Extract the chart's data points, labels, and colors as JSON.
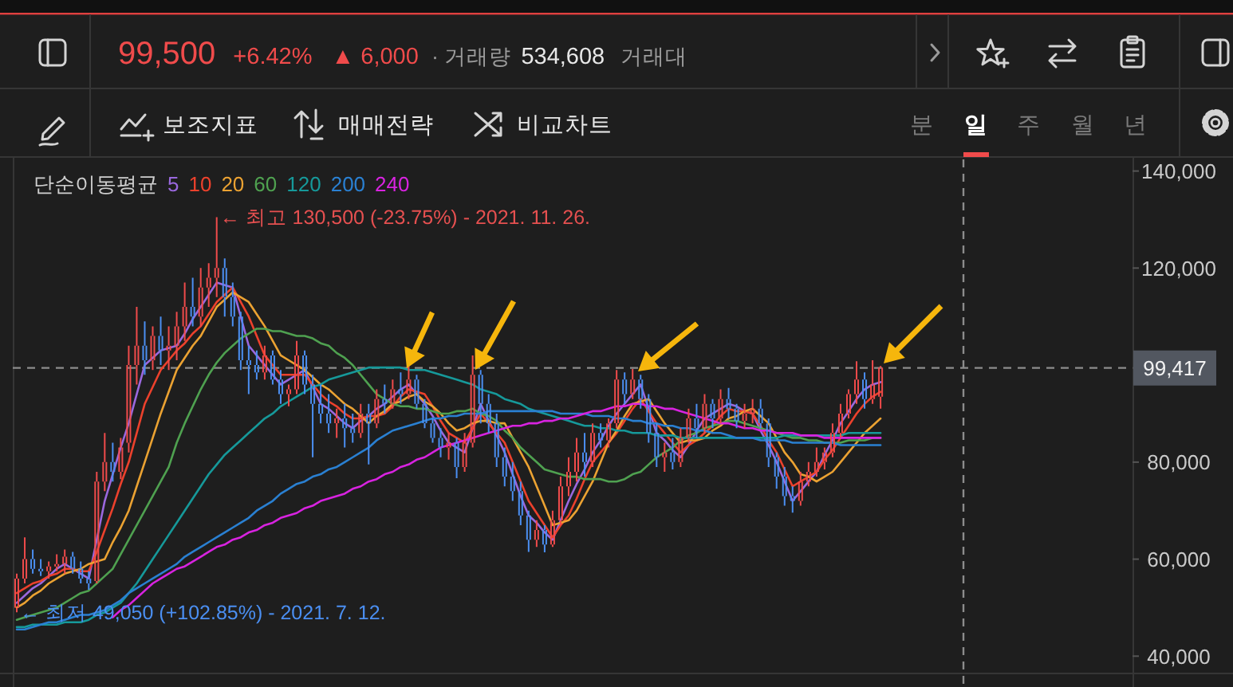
{
  "chart_data": [
    {
      "type": "other",
      "annotations": [
        "99,500",
        "+6.42%",
        "▲ 6,000",
        "· 거래량",
        "534,608",
        "거래대",
        "보조지표",
        "매매전략",
        "비교차트",
        "분",
        "일",
        "주",
        "월",
        "년"
      ]
    },
    {
      "type": "candlestick",
      "categories": [
        null,
        null,
        null,
        null,
        null,
        null,
        null,
        null,
        null,
        null,
        null,
        null,
        null,
        null,
        null,
        null,
        null,
        null,
        null,
        null,
        null,
        null,
        null,
        null,
        null,
        null,
        null,
        null,
        null,
        null,
        null,
        null,
        null,
        null,
        null,
        null,
        null,
        null,
        null,
        null,
        null,
        null,
        null,
        null,
        null,
        null,
        null,
        null,
        null,
        null,
        null,
        null,
        null,
        null,
        null,
        null,
        null,
        null,
        null,
        null,
        null,
        null,
        null,
        null,
        null,
        null,
        null,
        null,
        null,
        null,
        null,
        null,
        null,
        null,
        null,
        null,
        null,
        null,
        null,
        null,
        null,
        null,
        null,
        null,
        null,
        null,
        null,
        null,
        null,
        null,
        null,
        null,
        null,
        null,
        null,
        null,
        null,
        null,
        null,
        null,
        null,
        null,
        null,
        null,
        null,
        null,
        null,
        null,
        null,
        null,
        null,
        null,
        null,
        null,
        null,
        null,
        null,
        null,
        null,
        null,
        null,
        null,
        null,
        null,
        null,
        null,
        null,
        null,
        null,
        null,
        null,
        null,
        null,
        null,
        null,
        null,
        null,
        null,
        null,
        null
      ],
      "ohlc": [
        [
          50000,
          57000,
          49050,
          56000
        ],
        [
          56000,
          64500,
          55000,
          60000
        ],
        [
          60000,
          62000,
          57000,
          58000
        ],
        [
          58000,
          60000,
          56500,
          57500
        ],
        [
          57500,
          59500,
          56000,
          58500
        ],
        [
          58500,
          61000,
          57500,
          59000
        ],
        [
          59000,
          62000,
          57000,
          60500
        ],
        [
          60500,
          61500,
          57000,
          58000
        ],
        [
          58000,
          59500,
          55000,
          56000
        ],
        [
          56000,
          57500,
          53700,
          55000
        ],
        [
          55500,
          78000,
          55000,
          76000
        ],
        [
          76000,
          86000,
          74000,
          80000
        ],
        [
          80000,
          84000,
          76000,
          78000
        ],
        [
          78000,
          85000,
          76500,
          83000
        ],
        [
          84000,
          104000,
          82000,
          100000
        ],
        [
          100000,
          112000,
          96000,
          104000
        ],
        [
          104000,
          109000,
          98000,
          101000
        ],
        [
          101000,
          108000,
          99000,
          106000
        ],
        [
          106000,
          110000,
          100000,
          103000
        ],
        [
          103000,
          108000,
          99000,
          104000
        ],
        [
          104000,
          111000,
          101000,
          108000
        ],
        [
          108000,
          117000,
          105000,
          112000
        ],
        [
          112000,
          118000,
          108000,
          110000
        ],
        [
          110000,
          120000,
          108000,
          116000
        ],
        [
          116000,
          121000,
          112000,
          118000
        ],
        [
          118000,
          130500,
          114000,
          120000
        ],
        [
          120000,
          122000,
          110000,
          114000
        ],
        [
          114000,
          117000,
          108000,
          110000
        ],
        [
          110000,
          111000,
          99000,
          101000
        ],
        [
          101000,
          104000,
          94000,
          100000
        ],
        [
          100000,
          103000,
          97000,
          98500
        ],
        [
          98500,
          104000,
          97000,
          102000
        ],
        [
          102000,
          103000,
          96000,
          97000
        ],
        [
          97000,
          99000,
          92000,
          94000
        ],
        [
          94000,
          96000,
          91500,
          95000
        ],
        [
          95000,
          105000,
          94000,
          102000
        ],
        [
          102000,
          103000,
          94000,
          96000
        ],
        [
          96000,
          98000,
          81000,
          92000
        ],
        [
          92000,
          96000,
          88000,
          90000
        ],
        [
          90000,
          94000,
          86000,
          88000
        ],
        [
          88000,
          91000,
          85000,
          89000
        ],
        [
          89000,
          92000,
          83000,
          87000
        ],
        [
          87000,
          90000,
          84000,
          86000
        ],
        [
          86000,
          92000,
          85000,
          90000
        ],
        [
          90000,
          92000,
          79500,
          88000
        ],
        [
          88000,
          95000,
          87000,
          93000
        ],
        [
          93000,
          96000,
          90000,
          92000
        ],
        [
          92000,
          97000,
          91000,
          95000
        ],
        [
          95000,
          98500,
          92000,
          94000
        ],
        [
          94000,
          99800,
          93000,
          97000
        ],
        [
          97000,
          98000,
          91000,
          92000
        ],
        [
          92000,
          93000,
          87000,
          88000
        ],
        [
          88000,
          89000,
          84000,
          85000
        ],
        [
          85000,
          87000,
          81000,
          83000
        ],
        [
          83000,
          86000,
          80500,
          84000
        ],
        [
          84000,
          85000,
          76700,
          79000
        ],
        [
          79000,
          86000,
          78000,
          84000
        ],
        [
          84000,
          102000,
          83000,
          98000
        ],
        [
          98000,
          99000,
          88000,
          92000
        ],
        [
          92000,
          94000,
          86000,
          88000
        ],
        [
          88000,
          90000,
          79000,
          81000
        ],
        [
          81000,
          83000,
          75000,
          77000
        ],
        [
          77000,
          80000,
          72000,
          74000
        ],
        [
          74000,
          76000,
          67000,
          69000
        ],
        [
          69000,
          70000,
          61500,
          64000
        ],
        [
          64000,
          68000,
          62500,
          66000
        ],
        [
          66000,
          67000,
          61400,
          63000
        ],
        [
          63000,
          70000,
          62500,
          68000
        ],
        [
          68000,
          77000,
          67000,
          75000
        ],
        [
          75000,
          81000,
          73000,
          78000
        ],
        [
          78000,
          85000,
          76000,
          82000
        ],
        [
          82000,
          86000,
          77000,
          80000
        ],
        [
          80000,
          88000,
          79000,
          86000
        ],
        [
          86000,
          88000,
          83000,
          84500
        ],
        [
          84500,
          89000,
          83000,
          88000
        ],
        [
          88000,
          99000,
          87000,
          97000
        ],
        [
          97000,
          98500,
          92000,
          94000
        ],
        [
          94000,
          99200,
          93000,
          97000
        ],
        [
          97000,
          98000,
          91000,
          93000
        ],
        [
          93000,
          94000,
          84000,
          86000
        ],
        [
          86000,
          88000,
          79000,
          81000
        ],
        [
          81000,
          84000,
          78000,
          82000
        ],
        [
          82000,
          85000,
          78500,
          80000
        ],
        [
          80000,
          87000,
          79000,
          85000
        ],
        [
          85000,
          91000,
          84000,
          89000
        ],
        [
          89000,
          92000,
          85000,
          87000
        ],
        [
          87000,
          94000,
          86000,
          92000
        ],
        [
          92000,
          93000,
          87000,
          89000
        ],
        [
          89000,
          95000,
          88000,
          93000
        ],
        [
          93000,
          95300,
          89000,
          91000
        ],
        [
          91000,
          92000,
          87000,
          88500
        ],
        [
          88500,
          92000,
          87000,
          90000
        ],
        [
          90000,
          93000,
          88000,
          91000
        ],
        [
          91000,
          93000,
          87000,
          88000
        ],
        [
          88000,
          89000,
          79000,
          81000
        ],
        [
          81000,
          82000,
          74500,
          77000
        ],
        [
          77000,
          79000,
          71000,
          73000
        ],
        [
          73000,
          75000,
          69600,
          72000
        ],
        [
          72000,
          78000,
          71000,
          76000
        ],
        [
          76000,
          80000,
          75000,
          78000
        ],
        [
          78000,
          83000,
          77000,
          80000
        ],
        [
          80000,
          83000,
          78500,
          82000
        ],
        [
          82000,
          88000,
          81000,
          86000
        ],
        [
          86000,
          92000,
          85000,
          90000
        ],
        [
          90000,
          95000,
          89000,
          94000
        ],
        [
          94000,
          100800,
          92000,
          97000
        ],
        [
          97000,
          98500,
          91000,
          93000
        ],
        [
          93000,
          101000,
          92000,
          96000
        ],
        [
          93500,
          99800,
          91000,
          99500
        ],
        null,
        null,
        null,
        null,
        null,
        null,
        null,
        null,
        null,
        null,
        null,
        null,
        null,
        null,
        null,
        null,
        null,
        null,
        null,
        null,
        null,
        null,
        null,
        null,
        null,
        null,
        null,
        null,
        null,
        null,
        null
      ],
      "series": [
        {
          "type": "line",
          "name": "5",
          "color": "#9a68de",
          "values": [
            51000,
            52500,
            54000,
            55000,
            56500,
            58000,
            59000,
            58000,
            57000,
            56000,
            64000,
            72000,
            77500,
            83000,
            88000,
            94000,
            100000,
            101500,
            103000,
            103500,
            104000,
            106500,
            109500,
            112000,
            114500,
            117000,
            116500,
            116000,
            110000,
            104000,
            102000,
            100000,
            98000,
            96000,
            97000,
            98000,
            99000,
            95500,
            92000,
            91000,
            89500,
            88000,
            87000,
            88500,
            89500,
            91000,
            92000,
            93500,
            95000,
            96000,
            94000,
            92000,
            89500,
            86500,
            84000,
            83000,
            82000,
            87000,
            92000,
            88500,
            85500,
            82000,
            77500,
            73000,
            69000,
            67500,
            65500,
            64000,
            68000,
            72000,
            75500,
            78500,
            82000,
            84500,
            87500,
            90000,
            92000,
            94000,
            96000,
            91000,
            86000,
            84500,
            82500,
            81000,
            83500,
            86500,
            89000,
            90000,
            91000,
            92000,
            91500,
            90500,
            90000,
            86500,
            83500,
            80000,
            76000,
            72000,
            74000,
            76000,
            78000,
            81500,
            84500,
            88000,
            90500,
            93000,
            95000,
            96000,
            96500,
            null,
            null,
            null,
            null,
            null,
            null,
            null,
            null,
            null,
            null,
            null,
            null,
            null,
            null,
            null,
            null,
            null,
            null,
            null,
            null,
            null,
            null,
            null,
            null,
            null,
            null,
            null,
            null,
            null,
            null,
            null
          ]
        },
        {
          "type": "line",
          "name": "10",
          "color": "#ec412c",
          "values": [
            53000,
            54000,
            55000,
            55500,
            56500,
            57000,
            58000,
            58000,
            57500,
            57500,
            61500,
            66000,
            70500,
            75500,
            80000,
            86000,
            92000,
            95500,
            99000,
            101000,
            103000,
            104500,
            106500,
            108000,
            110500,
            113000,
            114500,
            116000,
            113000,
            110000,
            106000,
            102000,
            100000,
            98000,
            98000,
            98000,
            98000,
            96000,
            94000,
            92500,
            91500,
            90000,
            89000,
            89000,
            89500,
            89500,
            90000,
            91500,
            93500,
            95000,
            94500,
            94000,
            91500,
            88500,
            86000,
            85000,
            84000,
            87000,
            90000,
            88000,
            86000,
            84000,
            80000,
            76000,
            72000,
            69500,
            67000,
            64500,
            67000,
            69000,
            72500,
            76500,
            80000,
            82000,
            84000,
            86000,
            88500,
            91000,
            93000,
            90500,
            88000,
            86000,
            84000,
            82000,
            83500,
            84500,
            86000,
            87500,
            89500,
            91000,
            90500,
            90500,
            90000,
            87500,
            84500,
            82000,
            78500,
            75000,
            76000,
            77000,
            78000,
            80500,
            82500,
            85000,
            87500,
            90000,
            92000,
            93500,
            94500,
            null,
            null,
            null,
            null,
            null,
            null,
            null,
            null,
            null,
            null,
            null,
            null,
            null,
            null,
            null,
            null,
            null,
            null,
            null,
            null,
            null,
            null,
            null,
            null,
            null,
            null,
            null,
            null,
            null,
            null,
            null
          ]
        },
        {
          "type": "line",
          "name": "20",
          "color": "#eba232",
          "values": [
            50000,
            51000,
            52500,
            53500,
            55000,
            56000,
            57000,
            57500,
            58000,
            59000,
            59500,
            60000,
            63500,
            66500,
            70000,
            75000,
            80000,
            85000,
            90000,
            94500,
            99000,
            101500,
            104000,
            106000,
            109000,
            112000,
            113500,
            115000,
            114000,
            113000,
            110500,
            108000,
            105000,
            102000,
            101000,
            100000,
            99000,
            97500,
            96000,
            95000,
            93500,
            92000,
            91000,
            89500,
            88000,
            89500,
            90500,
            92000,
            92500,
            93500,
            94000,
            92500,
            91500,
            90000,
            88000,
            86500,
            87000,
            88000,
            88500,
            88500,
            88000,
            88000,
            85000,
            82000,
            79000,
            75000,
            71000,
            67000,
            67500,
            68000,
            70000,
            73000,
            76000,
            80000,
            84000,
            86500,
            89500,
            92000,
            92500,
            93000,
            90500,
            88000,
            86000,
            84000,
            84500,
            84500,
            85000,
            86500,
            87500,
            89000,
            89500,
            90500,
            91000,
            89500,
            88000,
            85000,
            82000,
            80000,
            77500,
            77000,
            76000,
            77000,
            78000,
            80000,
            82000,
            84000,
            86000,
            87500,
            89000,
            null,
            null,
            null,
            null,
            null,
            null,
            null,
            null,
            null,
            null,
            null,
            null,
            null,
            null,
            null,
            null,
            null,
            null,
            null,
            null,
            null,
            null,
            null,
            null,
            null,
            null,
            null,
            null,
            null,
            null,
            null
          ]
        },
        {
          "type": "line",
          "name": "60",
          "color": "#4fa150",
          "values": [
            47500,
            48000,
            48500,
            49000,
            49500,
            50000,
            51000,
            52000,
            53000,
            53500,
            55000,
            56500,
            58000,
            61000,
            64000,
            67000,
            70000,
            73000,
            76000,
            79000,
            84000,
            88000,
            91500,
            95000,
            98000,
            100500,
            102500,
            104000,
            105500,
            106500,
            107500,
            107500,
            107000,
            107000,
            106500,
            106000,
            106000,
            105500,
            104500,
            104000,
            102500,
            101500,
            100000,
            98000,
            96000,
            94000,
            93000,
            92000,
            91500,
            91500,
            91000,
            91000,
            90500,
            90000,
            90000,
            90500,
            90500,
            91000,
            90000,
            89500,
            88500,
            86500,
            85000,
            83000,
            81500,
            80000,
            78500,
            78000,
            77500,
            77000,
            77000,
            76500,
            76500,
            76500,
            76000,
            76000,
            76500,
            77500,
            78000,
            79500,
            81000,
            82000,
            83000,
            84500,
            85500,
            86000,
            87000,
            87500,
            88000,
            88500,
            88500,
            88000,
            87500,
            87000,
            86500,
            86000,
            85500,
            85000,
            85000,
            84500,
            84500,
            84000,
            84000,
            84000,
            84500,
            84500,
            84500,
            85000,
            85000,
            null,
            null,
            null,
            null,
            null,
            null,
            null,
            null,
            null,
            null,
            null,
            null,
            null,
            null,
            null,
            null,
            null,
            null,
            null,
            null,
            null,
            null,
            null,
            null,
            null,
            null,
            null,
            null,
            null,
            null,
            null
          ]
        },
        {
          "type": "line",
          "name": "120",
          "color": "#16999a",
          "values": [
            46000,
            46000,
            46500,
            46500,
            46500,
            46500,
            47000,
            47000,
            47000,
            47500,
            48500,
            49000,
            50000,
            51000,
            53000,
            55000,
            57500,
            60000,
            62500,
            65000,
            67500,
            70000,
            72500,
            75000,
            77500,
            79500,
            81500,
            83000,
            84500,
            86000,
            87500,
            89000,
            90000,
            91500,
            92500,
            93500,
            94500,
            95500,
            96000,
            97000,
            97500,
            98000,
            98500,
            99000,
            99500,
            99500,
            99500,
            99500,
            99500,
            99000,
            99000,
            99000,
            98500,
            98000,
            97500,
            97000,
            96500,
            96000,
            95000,
            94500,
            94000,
            93000,
            92500,
            92000,
            91000,
            90500,
            90000,
            89500,
            89000,
            88500,
            88000,
            87500,
            87500,
            87000,
            87000,
            86500,
            86500,
            86000,
            86000,
            86000,
            85500,
            85500,
            85500,
            85000,
            85000,
            85000,
            85000,
            85000,
            85000,
            85000,
            85000,
            85000,
            85000,
            85000,
            85000,
            85000,
            85500,
            85500,
            85500,
            85500,
            85500,
            85500,
            85500,
            85500,
            86000,
            86000,
            86000,
            86000,
            86000,
            null,
            null,
            null,
            null,
            null,
            null,
            null,
            null,
            null,
            null,
            null,
            null,
            null,
            null,
            null,
            null,
            null,
            null,
            null,
            null,
            null,
            null,
            null,
            null,
            null,
            null,
            null,
            null,
            null,
            null,
            null
          ]
        },
        {
          "type": "line",
          "name": "200",
          "color": "#2a80d2",
          "values": [
            45500,
            45500,
            46000,
            46500,
            47000,
            47000,
            47500,
            48000,
            48500,
            48500,
            49000,
            49500,
            50500,
            51500,
            53000,
            54000,
            55000,
            56000,
            57000,
            58000,
            59000,
            60500,
            61500,
            62500,
            63500,
            64500,
            65500,
            66500,
            67500,
            68500,
            70000,
            71000,
            72000,
            73500,
            74500,
            75500,
            76000,
            77000,
            77500,
            78500,
            79000,
            80000,
            81000,
            82000,
            83000,
            84500,
            85500,
            86500,
            87000,
            87500,
            88000,
            88500,
            89000,
            89000,
            89500,
            89500,
            90000,
            90000,
            90000,
            90500,
            90500,
            90500,
            90500,
            90500,
            90500,
            90500,
            90500,
            90500,
            90000,
            90000,
            90000,
            90000,
            89500,
            89500,
            89500,
            89000,
            89000,
            88500,
            88500,
            88000,
            88000,
            87500,
            87500,
            87000,
            87000,
            86500,
            86500,
            86000,
            86000,
            85500,
            85000,
            85000,
            85000,
            84500,
            84500,
            84500,
            84500,
            84000,
            84000,
            84000,
            84000,
            84000,
            84000,
            83500,
            83500,
            83500,
            83500,
            83500,
            83500,
            null,
            null,
            null,
            null,
            null,
            null,
            null,
            null,
            null,
            null,
            null,
            null,
            null,
            null,
            null,
            null,
            null,
            null,
            null,
            null,
            null,
            null,
            null,
            null,
            null,
            null,
            null,
            null,
            null,
            null,
            null
          ]
        },
        {
          "type": "line",
          "name": "240",
          "color": "#d823e0",
          "values": [
            null,
            null,
            null,
            null,
            null,
            null,
            null,
            null,
            null,
            null,
            null,
            null,
            48000,
            49500,
            50500,
            52000,
            53500,
            55000,
            56000,
            57000,
            58000,
            58500,
            59500,
            60500,
            61500,
            62500,
            63000,
            64000,
            64500,
            65500,
            66000,
            67000,
            67500,
            68500,
            69000,
            69500,
            70500,
            71000,
            72000,
            72500,
            73000,
            73500,
            74500,
            75000,
            76000,
            76500,
            77500,
            78000,
            79000,
            79500,
            80500,
            81000,
            82000,
            83000,
            83500,
            84000,
            84500,
            85000,
            85500,
            86000,
            86500,
            87000,
            87500,
            87500,
            88000,
            88000,
            88500,
            88500,
            89000,
            89000,
            89500,
            90000,
            90500,
            90500,
            91000,
            91500,
            91500,
            92000,
            92000,
            91500,
            91500,
            91000,
            91000,
            90500,
            90000,
            89500,
            89000,
            88500,
            88000,
            88000,
            87500,
            87000,
            87000,
            86500,
            86500,
            86000,
            86000,
            86000,
            85500,
            85500,
            85500,
            85000,
            85000,
            85000,
            85000,
            85000,
            85000,
            85000,
            85000,
            null,
            null,
            null,
            null,
            null,
            null,
            null,
            null,
            null,
            null,
            null,
            null,
            null,
            null,
            null,
            null,
            null,
            null,
            null,
            null,
            null,
            null,
            null,
            null,
            null,
            null,
            null,
            null,
            null,
            null,
            null
          ]
        }
      ],
      "ylim": [
        36600,
        142400
      ],
      "yticks": [
        {
          "value": 40000,
          "label": "40,000"
        },
        {
          "value": 60000,
          "label": "60,000"
        },
        {
          "value": 80000,
          "label": "80,000"
        },
        {
          "value": 99417,
          "label": "99,417"
        },
        {
          "value": 120000,
          "label": "120,000"
        },
        {
          "value": 140000,
          "label": "140,000"
        }
      ],
      "tick_labels": "y",
      "legend": "top left",
      "legend_title": "단순이동평균",
      "ref_lines": [
        {
          "axis": "y",
          "value": 99417,
          "line_style": "dashed",
          "color": "#8c8c8c"
        }
      ],
      "annotations": [
        "← 최고 130,500 (-23.75%) - 2021. 11. 26.",
        "← 최저 49,050 (+102.85%) - 2021. 7. 12."
      ]
    }
  ]
}
